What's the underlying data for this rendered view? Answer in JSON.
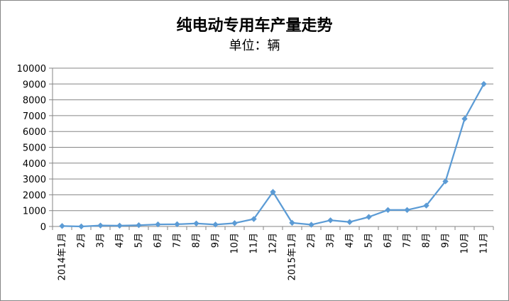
{
  "chart_data": {
    "type": "line",
    "title": "纯电动专用车产量走势",
    "subtitle": "单位：辆",
    "xlabel": "",
    "ylabel": "",
    "ylim": [
      0,
      10000
    ],
    "yticks": [
      0,
      1000,
      2000,
      3000,
      4000,
      5000,
      6000,
      7000,
      8000,
      9000,
      10000
    ],
    "grid": true,
    "legend": "none",
    "line_color": "#5B9BD5",
    "categories": [
      "2014年1月",
      "2月",
      "3月",
      "4月",
      "5月",
      "6月",
      "7月",
      "8月",
      "9月",
      "10月",
      "11月",
      "12月",
      "2015年1月",
      "2月",
      "3月",
      "4月",
      "5月",
      "6月",
      "7月",
      "8月",
      "9月",
      "10月",
      "11月"
    ],
    "series": [
      {
        "values": [
          30,
          0,
          60,
          50,
          80,
          130,
          140,
          190,
          120,
          210,
          470,
          2180,
          230,
          110,
          390,
          280,
          600,
          1040,
          1040,
          1320,
          2850,
          6800,
          9000
        ]
      }
    ]
  }
}
